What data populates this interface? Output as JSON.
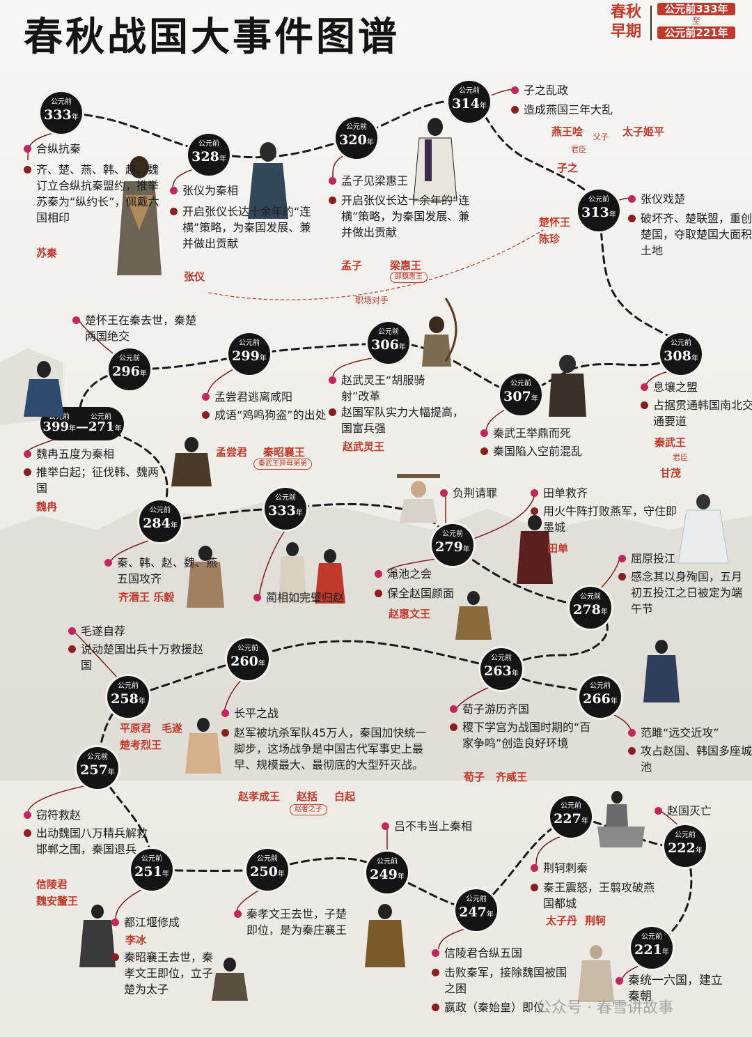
{
  "title": "春秋战国大事件图谱",
  "era": "春秋早期",
  "range": {
    "from": "公元前333年",
    "to_word": "至",
    "to": "公元前221年"
  },
  "prefix": "公元前",
  "unit": "年",
  "colors": {
    "accent": "#c0392b",
    "dot": "#c2275b",
    "dot_dark": "#8a1f1f",
    "badge": "#141414"
  },
  "nodes": {
    "n333a": "333",
    "n328": "328",
    "n320": "320",
    "n314": "314",
    "n313": "313",
    "n308": "308",
    "n307": "307",
    "n306": "306",
    "n299": "299",
    "n296": "296",
    "n399": "399",
    "n271": "271",
    "n284": "284",
    "n333b": "333",
    "n279": "279",
    "n278": "278",
    "n260": "260",
    "n258": "258",
    "n263": "263",
    "n266": "266",
    "n257": "257",
    "n251": "251",
    "n250": "250",
    "n249": "249",
    "n247": "247",
    "n227": "227",
    "n222": "222",
    "n221": "221"
  },
  "events": {
    "e333_1": "合纵抗秦",
    "e333_2": "齐、楚、燕、韩、赵、魏订立合纵抗秦盟约，推举苏秦为“纵约长”，佩戴六国相印",
    "e333_p": "苏秦",
    "e328_1": "张仪为秦相",
    "e328_2": "开启张仪长达十余年的“连横”策略，为秦国发展、兼并做出贡献",
    "e328_p": "张仪",
    "e320_1": "孟子见梁惠王",
    "e320_2": "开启张仪长达十余年的“连横”策略，为秦国发展、兼并做出贡献",
    "e320_p1": "孟子",
    "e320_p2": "梁惠王",
    "e320_note": "即魏惠王",
    "e314_1": "子之乱政",
    "e314_2": "造成燕国三年大乱",
    "e314_r1": "燕王哙",
    "e314_r2": "太子姬平",
    "e314_rel1": "父子",
    "e314_rel2": "君臣",
    "e314_r3": "子之",
    "e313_1": "张仪戏楚",
    "e313_2": "破坏齐、楚联盟，重创楚国，夺取楚国大面积土地",
    "e313_p1": "楚怀王",
    "e313_p2": "陈珍",
    "rival": "职场对手",
    "e296_1": "楚怀王在秦去世，秦楚两国绝交",
    "e299_1": "孟尝君逃离咸阳",
    "e299_2": "成语“鸡鸣狗盗”的出处",
    "e299_p1": "孟尝君",
    "e299_p2": "秦昭襄王",
    "e299_note": "秦武王异母弟弟",
    "e306_1": "赵武灵王“胡服骑射”改革",
    "e306_2": "赵国军队实力大幅提高，国富兵强",
    "e306_p": "赵武灵王",
    "e307_1": "秦武王举鼎而死",
    "e307_2": "秦国陷入空前混乱",
    "e308_1": "息壤之盟",
    "e308_2": "占据贯通韩国南北交通要道",
    "e308_p1": "秦武王",
    "e308_rel": "君臣",
    "e308_p2": "甘茂",
    "e399_1": "魏冉五度为秦相",
    "e399_2": "推举白起；征伐韩、魏两国",
    "e399_p": "魏冉",
    "e284_1": "秦、韩、赵、魏、燕五国攻齐",
    "e284_p": "齐湣王  乐毅",
    "e333b_1": "蔺相如完璧归赵",
    "e279a_1": "负荆请罪",
    "e279b_1": "田单救齐",
    "e279b_2": "用火牛阵打败燕军，守住即墨城",
    "e279b_p": "田单",
    "e279c_1": "渑池之会",
    "e279c_2": "保全赵国颜面",
    "e279c_p": "赵惠文王",
    "e278_1": "屈原投江",
    "e278_2": "感念其以身殉国，五月初五投江之日被定为端午节",
    "e258_1": "毛遂自荐",
    "e258_2": "说动楚国出兵十万救援赵国",
    "e258_p1": "平原君",
    "e258_p2": "毛遂",
    "e258_p3": "楚考烈王",
    "e260_1": "长平之战",
    "e260_2": "赵军被坑杀军队45万人，秦国加快统一脚步，这场战争是中国古代军事史上最早、规模最大、最彻底的大型歼灭战。",
    "e260_p1": "赵孝成王",
    "e260_p2": "赵括",
    "e260_p3": "白起",
    "e260_note": "赵奢之子",
    "e263_1": "荀子游历齐国",
    "e263_2": "稷下学宫为战国时期的“百家争鸣”创造良好环境",
    "e263_p1": "荀子",
    "e263_p2": "齐威王",
    "e266_1": "范雎“远交近攻”",
    "e266_2": "攻占赵国、韩国多座城池",
    "e257_1": "窃符救赵",
    "e257_2": "出动魏国八万精兵解救邯郸之围，秦国退兵",
    "e257_p1": "信陵君",
    "e257_p2": "魏安釐王",
    "e251_1": "都江堰修成",
    "e251_p": "李冰",
    "e251_2": "秦昭襄王去世，秦孝文王即位，立子楚为太子",
    "e250_1": "秦孝文王去世，子楚即位，是为秦庄襄王",
    "e249_1": "吕不韦当上秦相",
    "e247_1": "信陵君合纵五国",
    "e247_2": "击败秦军，接除魏国被围之困",
    "e247_3": "嬴政（秦始皇）即位",
    "e227_1": "荆轲刺秦",
    "e227_2": "秦王震怒，王翦攻破燕国都城",
    "e227_p1": "太子丹",
    "e227_p2": "荆轲",
    "e222_1": "赵国灭亡",
    "e221_1": "秦统一六国，建立秦朝"
  },
  "watermark": "公众号 · 春雪讲故事"
}
